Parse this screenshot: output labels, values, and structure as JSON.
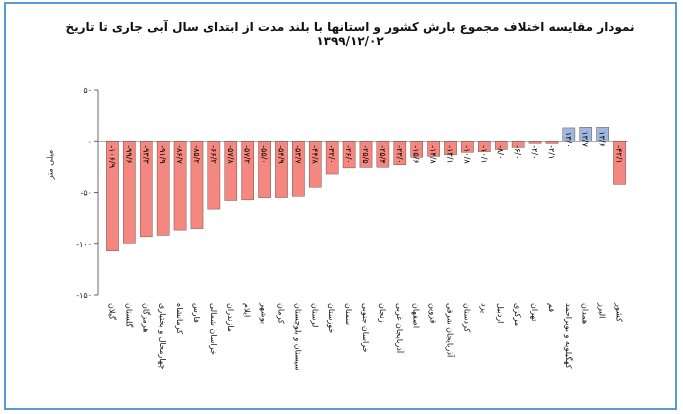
{
  "chart_data": {
    "type": "bar",
    "title": "نمودار مقایسه اختلاف مجموع بارش کشور و استانها با بلند مدت از ابتدای سال آبی جاری تا تاریخ ۱۳۹۹/۱۲/۰۲",
    "ylabel": "میلی متر",
    "xlabel": "",
    "ylim": [
      -150,
      50
    ],
    "yticks": [
      50,
      0,
      -50,
      -100,
      -150
    ],
    "ytick_labels": [
      "۵۰",
      "۰",
      "-۵۰",
      "-۱۰۰",
      "-۱۵۰"
    ],
    "grid": false,
    "categories": [
      "گیلان",
      "گلستان",
      "هرمزگان",
      "چهارمحال و بختیاری",
      "کرمانشاه",
      "فارس",
      "خراسان شمالی",
      "مازندران",
      "ایلام",
      "بوشهر",
      "کرمان",
      "سیستان و بلوچستان",
      "لرستان",
      "خوزستان",
      "سمنان",
      "خراسان جنوبی",
      "زنجان",
      "آذربایجان غربی",
      "اصفهان",
      "قزوین",
      "آذربایجان شرقی",
      "کردستان",
      "یزد",
      "اردبیل",
      "مرکزی",
      "تهران",
      "قم",
      "کهگیلویه و بویراحمد",
      "همدان",
      "البرز",
      "کشور"
    ],
    "values": [
      -106.9,
      -99.6,
      -93.3,
      -91.9,
      -86.7,
      -85.2,
      -66.2,
      -57.8,
      -57.2,
      -55.0,
      -54.9,
      -53.7,
      -44.8,
      -32.0,
      -26.0,
      -25.5,
      -25.4,
      -23.0,
      -15.6,
      -14.8,
      -13.1,
      -10.8,
      -10.1,
      -8.0,
      -6.0,
      -2.0,
      -2.1,
      13.0,
      13.7,
      13.6,
      -42.1
    ],
    "value_labels": [
      "-۱۰۶/۹",
      "-۹۹/۶",
      "-۹۳/۳",
      "-۹۱/۹",
      "-۸۶/۷",
      "-۸۵/۲",
      "-۶۶/۲",
      "-۵۷/۸",
      "-۵۷/۲",
      "-۵۵/۰",
      "-۵۴/۹",
      "-۵۳/۷",
      "-۴۴/۸",
      "-۳۲/۰",
      "-۲۶/۰",
      "-۲۵/۵",
      "-۲۵/۴",
      "-۲۳/۰",
      "-۱۵/۶",
      "-۱۴/۸",
      "-۱۳/۱",
      "-۱۰/۸",
      "-۱۰/۱",
      "-۸/۰",
      "-۶/۰",
      "-۲/۰",
      "-۲/۱",
      "۱۳/۰",
      "۱۳/۷",
      "۱۳/۶",
      "-۴۲/۱"
    ],
    "colors": {
      "negative": "#f4877f",
      "positive": "#9db8dd",
      "stroke": "#5a3a3a"
    }
  }
}
